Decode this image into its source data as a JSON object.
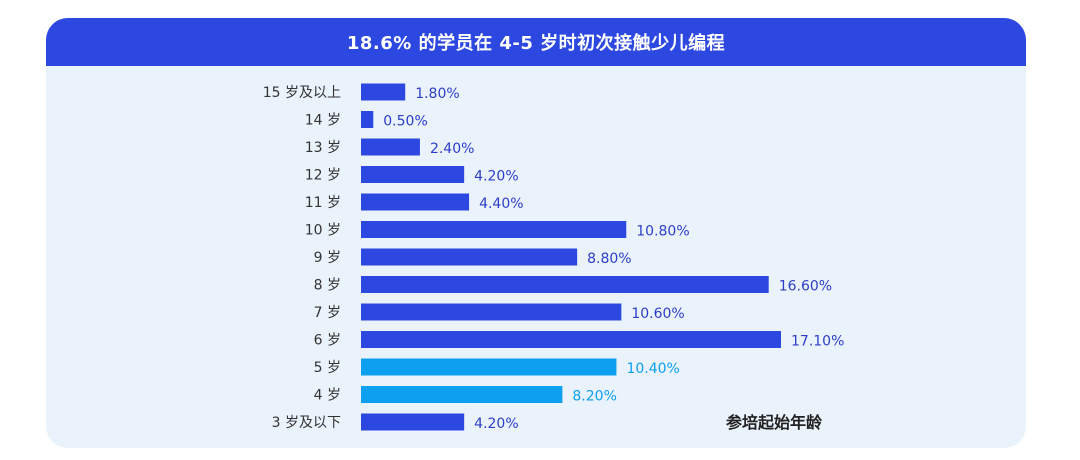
{
  "header": {
    "title": "18.6% 的学员在 4-5 岁时初次接触少儿编程"
  },
  "colors": {
    "header_bg": "#2d48e0",
    "card_bg": "#eaf2fc",
    "bar_default": "#2d48e0",
    "bar_highlight": "#0ea0f0",
    "label_default": "#2d3ec6",
    "label_highlight": "#0ea0f0"
  },
  "chart_data": {
    "type": "bar",
    "orientation": "horizontal",
    "title": "18.6% 的学员在 4-5 岁时初次接触少儿编程",
    "series_label": "参培起始年龄",
    "categories": [
      "15 岁及以上",
      "14 岁",
      "13 岁",
      "12 岁",
      "11 岁",
      "10 岁",
      "9 岁",
      "8 岁",
      "7 岁",
      "6 岁",
      "5 岁",
      "4 岁",
      "3 岁及以下"
    ],
    "values": [
      1.8,
      0.5,
      2.4,
      4.2,
      4.4,
      10.8,
      8.8,
      16.6,
      10.6,
      17.1,
      10.4,
      8.2,
      4.2
    ],
    "value_labels": [
      "1.80%",
      "0.50%",
      "2.40%",
      "4.20%",
      "4.40%",
      "10.80%",
      "8.80%",
      "16.60%",
      "10.60%",
      "17.10%",
      "10.40%",
      "8.20%",
      "4.20%"
    ],
    "highlighted_categories": [
      "5 岁",
      "4 岁"
    ],
    "unit": "%",
    "xlim": [
      0,
      17.1
    ],
    "grid": false,
    "legend": "none"
  }
}
